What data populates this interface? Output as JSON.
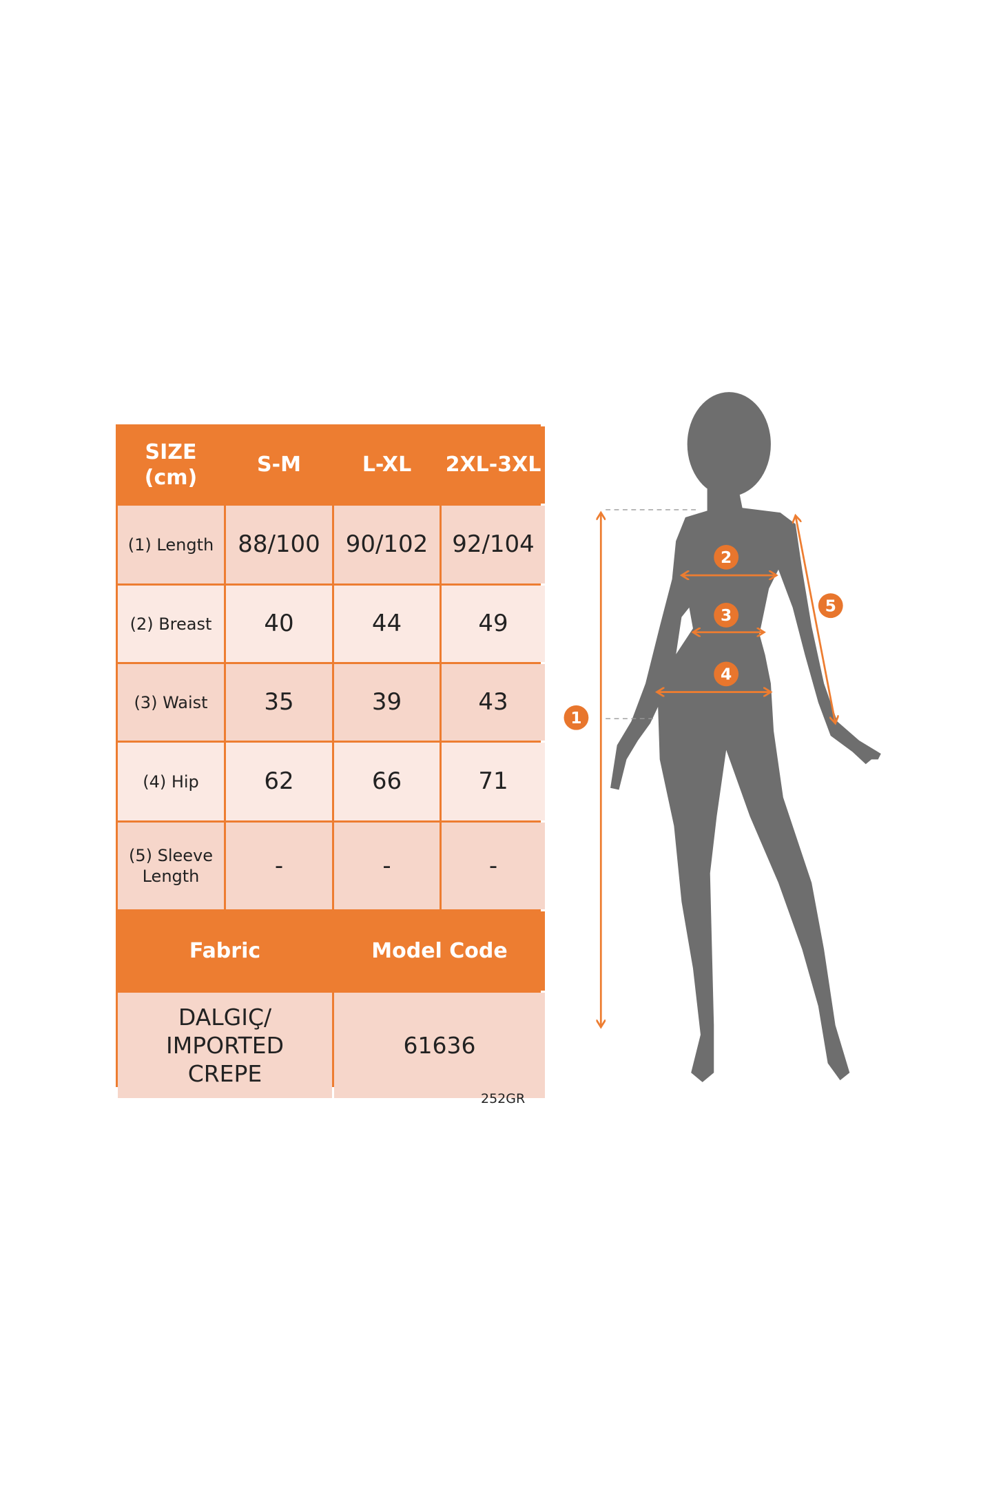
{
  "table": {
    "header": [
      "SIZE (cm)",
      "S-M",
      "L-XL",
      "2XL-3XL"
    ],
    "rows": [
      {
        "label": "(1) Length",
        "values": [
          "88/100",
          "90/102",
          "92/104"
        ]
      },
      {
        "label": "(2) Breast",
        "values": [
          "40",
          "44",
          "49"
        ]
      },
      {
        "label": "(3) Waist",
        "values": [
          "35",
          "39",
          "43"
        ]
      },
      {
        "label": "(4) Hip",
        "values": [
          "62",
          "66",
          "71"
        ]
      },
      {
        "label": "(5) Sleeve Length",
        "values": [
          "-",
          "-",
          "-"
        ]
      }
    ],
    "footer_headers": [
      "Fabric",
      "Model Code"
    ],
    "footer_values": [
      "DALGIÇ/ IMPORTED CREPE",
      "61636"
    ]
  },
  "code_note": "252GR",
  "figure": {
    "markers": [
      "1",
      "2",
      "3",
      "4",
      "5"
    ]
  },
  "colors": {
    "accent": "#ED7D31",
    "silhouette": "#6E6E6E",
    "row_dark": "#F6D6CA",
    "row_light": "#FBE9E3"
  }
}
